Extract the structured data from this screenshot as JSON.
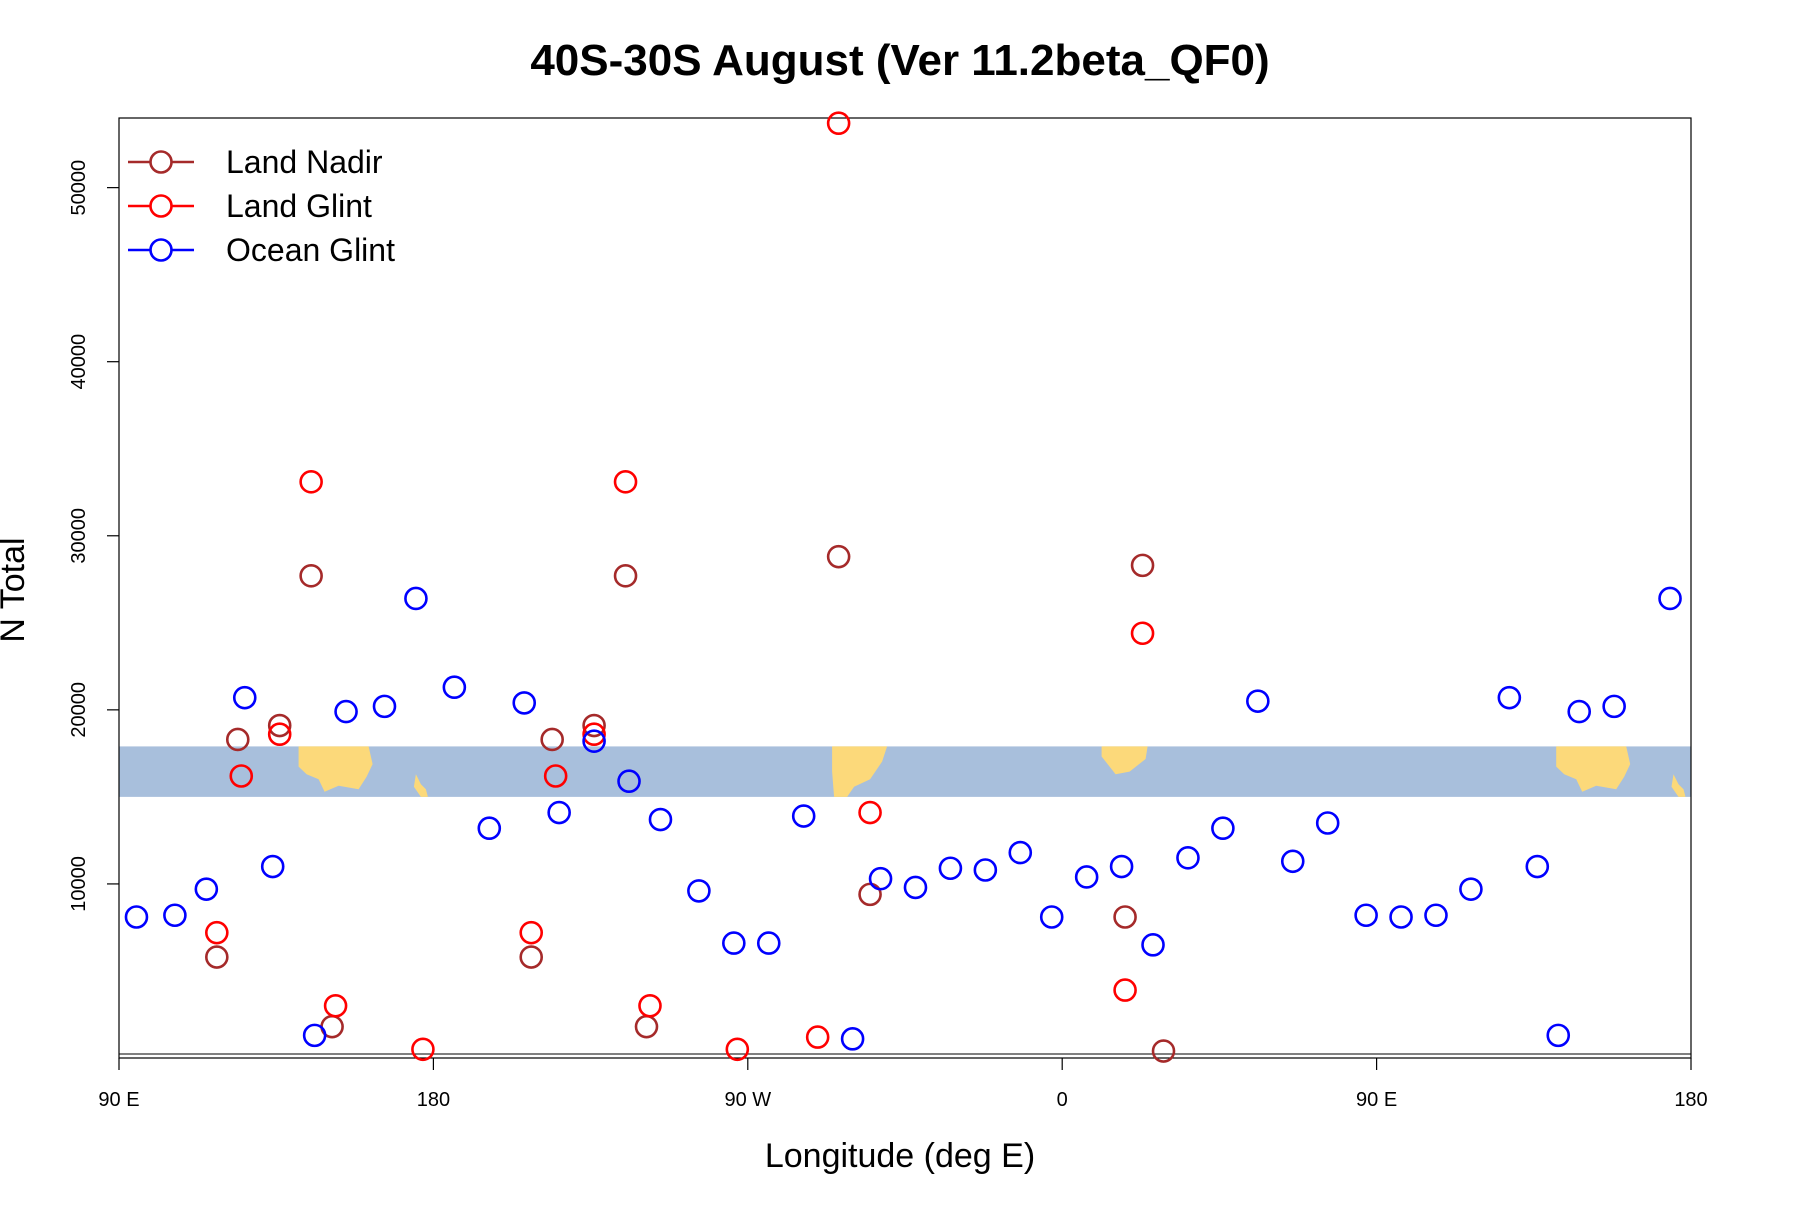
{
  "chart_data": {
    "type": "scatter",
    "title": "40S-30S August (Ver 11.2beta_QF0)",
    "xlabel": "Longitude (deg E)",
    "ylabel": "N Total",
    "xlim": [
      90,
      540
    ],
    "ylim": [
      0,
      54000
    ],
    "x_ticks": [
      {
        "value": 90,
        "label": "90 E"
      },
      {
        "value": 180,
        "label": "180"
      },
      {
        "value": 270,
        "label": "90 W"
      },
      {
        "value": 360,
        "label": "0"
      },
      {
        "value": 450,
        "label": "90 E"
      },
      {
        "value": 540,
        "label": "180"
      }
    ],
    "y_ticks": [
      10000,
      20000,
      30000,
      40000,
      50000
    ],
    "grid": false,
    "legend_position": "top-left",
    "map_band": {
      "y_range": [
        15000,
        17900
      ],
      "ocean_color": "#a8bfdc",
      "land_color": "#fcd97a"
    },
    "series": [
      {
        "name": "Land Nadir",
        "color": "#a52a2a",
        "points": [
          [
            118,
            5800
          ],
          [
            124,
            18300
          ],
          [
            136,
            19100
          ],
          [
            145,
            27700
          ],
          [
            151,
            1800
          ],
          [
            296,
            28800
          ],
          [
            305,
            9400
          ],
          [
            378,
            8100
          ],
          [
            383,
            28300
          ],
          [
            389,
            400
          ],
          [
            208,
            5800
          ],
          [
            214,
            18300
          ],
          [
            226,
            19100
          ],
          [
            235,
            27700
          ],
          [
            241,
            1800
          ]
        ]
      },
      {
        "name": "Land Glint",
        "color": "#ff0000",
        "points": [
          [
            118,
            7200
          ],
          [
            125,
            16200
          ],
          [
            136,
            18600
          ],
          [
            145,
            33100
          ],
          [
            152,
            3000
          ],
          [
            177,
            500
          ],
          [
            296,
            53700
          ],
          [
            290,
            1200
          ],
          [
            305,
            14100
          ],
          [
            378,
            3900
          ],
          [
            383,
            24400
          ],
          [
            208,
            7200
          ],
          [
            215,
            16200
          ],
          [
            226,
            18600
          ],
          [
            235,
            33100
          ],
          [
            242,
            3000
          ],
          [
            267,
            500
          ]
        ]
      },
      {
        "name": "Ocean Glint",
        "color": "#0000ff",
        "points": [
          [
            95,
            8100
          ],
          [
            106,
            8200
          ],
          [
            115,
            9700
          ],
          [
            126,
            20700
          ],
          [
            134,
            11000
          ],
          [
            146,
            1300
          ],
          [
            155,
            19900
          ],
          [
            166,
            20200
          ],
          [
            175,
            26400
          ],
          [
            186,
            21300
          ],
          [
            196,
            13200
          ],
          [
            206,
            20400
          ],
          [
            216,
            14100
          ],
          [
            226,
            18200
          ],
          [
            236,
            15900
          ],
          [
            245,
            13700
          ],
          [
            256,
            9600
          ],
          [
            266,
            6600
          ],
          [
            276,
            6600
          ],
          [
            286,
            13900
          ],
          [
            300,
            1100
          ],
          [
            308,
            10300
          ],
          [
            318,
            9800
          ],
          [
            328,
            10900
          ],
          [
            338,
            10800
          ],
          [
            348,
            11800
          ],
          [
            357,
            8100
          ],
          [
            367,
            10400
          ],
          [
            377,
            11000
          ],
          [
            386,
            6500
          ],
          [
            396,
            11500
          ],
          [
            406,
            13200
          ],
          [
            416,
            20500
          ],
          [
            426,
            11300
          ],
          [
            436,
            13500
          ],
          [
            447,
            8200
          ],
          [
            457,
            8100
          ],
          [
            467,
            8200
          ],
          [
            477,
            9700
          ],
          [
            488,
            20700
          ],
          [
            496,
            11000
          ],
          [
            502,
            1300
          ],
          [
            508,
            19900
          ],
          [
            518,
            20200
          ],
          [
            534,
            26400
          ]
        ]
      }
    ]
  }
}
